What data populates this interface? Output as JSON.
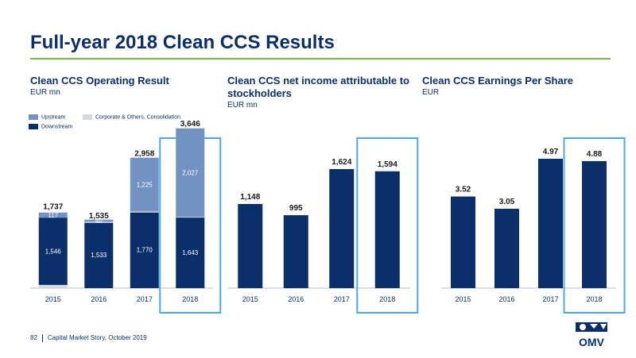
{
  "page": {
    "title": "Full-year 2018 Clean CCS Results",
    "footer_page": "82",
    "footer_text": "Capital Market Story, October 2019",
    "logo_text": "OMV"
  },
  "colors": {
    "navy": "#0a2f6b",
    "upstream": "#7392c4",
    "corporate": "#d5d9e0",
    "green_rule": "#7ab53c",
    "highlight_box": "#4fa8e8"
  },
  "chart_data": [
    {
      "type": "bar",
      "stacked": true,
      "title": "Clean CCS Operating Result",
      "unit": "EUR mn",
      "categories": [
        "2015",
        "2016",
        "2017",
        "2018"
      ],
      "series": [
        {
          "name": "Corporate & Others, Consolidation",
          "values": [
            74,
            -38,
            -37,
            -24
          ]
        },
        {
          "name": "Downstream",
          "values": [
            1546,
            1533,
            1770,
            1643
          ]
        },
        {
          "name": "Upstream",
          "values": [
            117,
            40,
            1225,
            2027
          ]
        }
      ],
      "totals": [
        1737,
        1535,
        2958,
        3646
      ],
      "value_labels": {
        "Downstream": [
          "1,546",
          "1,533",
          "1,770",
          "1,643"
        ],
        "Upstream": [
          "117",
          "40",
          "1,225",
          "2,027"
        ]
      },
      "total_labels": [
        "1,737",
        "1,535",
        "2,958",
        "3,646"
      ],
      "legend": [
        "Upstream",
        "Corporate & Others, Consolidation",
        "Downstream"
      ],
      "highlight": "2018"
    },
    {
      "type": "bar",
      "title": "Clean CCS net income attributable to stockholders",
      "unit": "EUR mn",
      "categories": [
        "2015",
        "2016",
        "2017",
        "2018"
      ],
      "values": [
        1148,
        995,
        1624,
        1594
      ],
      "value_labels": [
        "1,148",
        "995",
        "1,624",
        "1,594"
      ],
      "highlight": "2018"
    },
    {
      "type": "bar",
      "title": "Clean CCS Earnings Per Share",
      "unit": "EUR",
      "categories": [
        "2015",
        "2016",
        "2017",
        "2018"
      ],
      "values": [
        3.52,
        3.05,
        4.97,
        4.88
      ],
      "value_labels": [
        "3.52",
        "3.05",
        "4.97",
        "4.88"
      ],
      "highlight": "2018"
    }
  ]
}
